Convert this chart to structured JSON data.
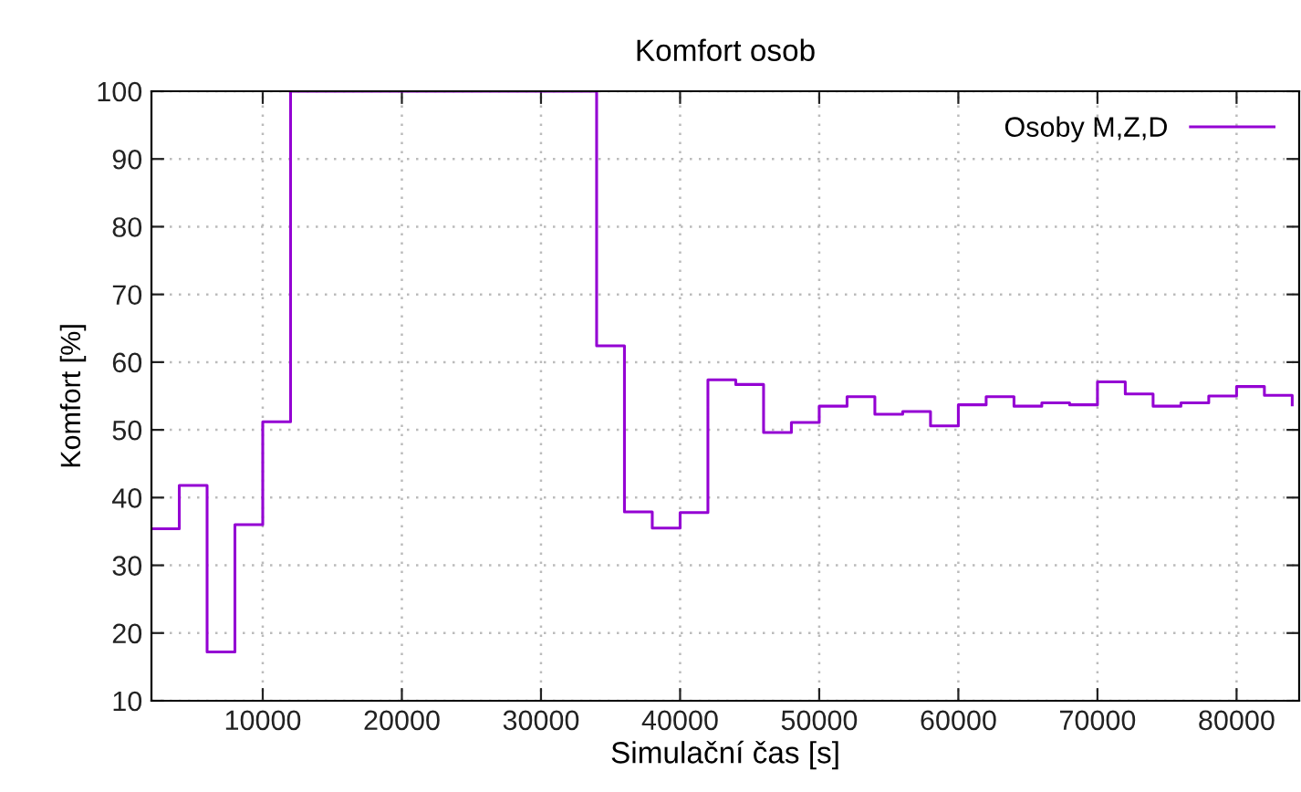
{
  "chart_data": {
    "type": "step",
    "title": "Komfort osob",
    "xlabel": "Simulační čas [s]",
    "ylabel": "Komfort [%]",
    "x": [
      2000,
      4000,
      6000,
      8000,
      10000,
      12000,
      34000,
      36000,
      38000,
      40000,
      42000,
      44000,
      46000,
      48000,
      50000,
      52000,
      54000,
      56000,
      58000,
      60000,
      62000,
      64000,
      66000,
      68000,
      70000,
      72000,
      74000,
      76000,
      78000,
      80000,
      82000,
      84000
    ],
    "series": [
      {
        "name": "Osoby M,Z,D",
        "color": "#9400d3",
        "values": [
          35.4,
          41.8,
          17.2,
          36.0,
          51.2,
          100,
          62.4,
          37.9,
          35.5,
          37.8,
          57.4,
          56.7,
          49.6,
          51.1,
          53.5,
          54.9,
          52.3,
          52.7,
          50.6,
          53.7,
          54.9,
          53.5,
          54.0,
          53.7,
          57.1,
          55.3,
          53.5,
          54.0,
          55.0,
          56.4,
          55.1,
          53.7
        ]
      }
    ],
    "xlim": [
      2000,
      84500
    ],
    "ylim": [
      10,
      100
    ],
    "xticks": [
      10000,
      20000,
      30000,
      40000,
      50000,
      60000,
      70000,
      80000
    ],
    "yticks": [
      10,
      20,
      30,
      40,
      50,
      60,
      70,
      80,
      90,
      100
    ],
    "grid": true,
    "legend": "top right"
  }
}
